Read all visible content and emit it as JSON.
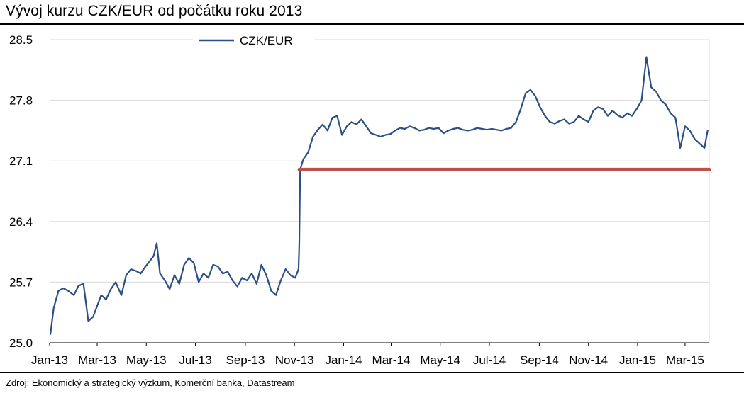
{
  "title": "Vývoj kurzu CZK/EUR od počátku roku 2013",
  "source": "Zdroj: Ekonomický a strategický výzkum, Komerční banka, Datastream",
  "colors": {
    "series": "#2b4f85",
    "floor": "#c0504d",
    "grid": "#d9d9d9",
    "rule": "#000000"
  },
  "chart_data": {
    "type": "line",
    "title": "Vývoj kurzu CZK/EUR od počátku roku 2013",
    "xlabel": "",
    "ylabel": "",
    "ylim": [
      25.0,
      28.5
    ],
    "yticks": [
      "25.0",
      "25.7",
      "26.4",
      "27.1",
      "27.8",
      "28.5"
    ],
    "xlim": [
      "2013-01-01",
      "2015-03-31"
    ],
    "xticks": [
      {
        "date": "2013-01-01",
        "label": "Jan-13"
      },
      {
        "date": "2013-03-01",
        "label": "Mar-13"
      },
      {
        "date": "2013-05-01",
        "label": "May-13"
      },
      {
        "date": "2013-07-01",
        "label": "Jul-13"
      },
      {
        "date": "2013-09-01",
        "label": "Sep-13"
      },
      {
        "date": "2013-11-01",
        "label": "Nov-13"
      },
      {
        "date": "2014-01-01",
        "label": "Jan-14"
      },
      {
        "date": "2014-03-01",
        "label": "Mar-14"
      },
      {
        "date": "2014-05-01",
        "label": "May-14"
      },
      {
        "date": "2014-07-01",
        "label": "Jul-14"
      },
      {
        "date": "2014-09-01",
        "label": "Sep-14"
      },
      {
        "date": "2014-11-01",
        "label": "Nov-14"
      },
      {
        "date": "2015-01-01",
        "label": "Jan-15"
      },
      {
        "date": "2015-03-01",
        "label": "Mar-15"
      }
    ],
    "grid": true,
    "legend": "top-center",
    "series": [
      {
        "name": "CZK/EUR",
        "x": [
          "2013-01-02",
          "2013-01-06",
          "2013-01-12",
          "2013-01-18",
          "2013-01-24",
          "2013-01-31",
          "2013-02-06",
          "2013-02-12",
          "2013-02-18",
          "2013-02-24",
          "2013-03-02",
          "2013-03-06",
          "2013-03-12",
          "2013-03-18",
          "2013-03-24",
          "2013-03-31",
          "2013-04-06",
          "2013-04-12",
          "2013-04-18",
          "2013-04-24",
          "2013-04-30",
          "2013-05-06",
          "2013-05-10",
          "2013-05-14",
          "2013-05-18",
          "2013-05-24",
          "2013-05-30",
          "2013-06-05",
          "2013-06-11",
          "2013-06-17",
          "2013-06-23",
          "2013-06-29",
          "2013-07-05",
          "2013-07-11",
          "2013-07-17",
          "2013-07-23",
          "2013-07-29",
          "2013-08-04",
          "2013-08-10",
          "2013-08-16",
          "2013-08-22",
          "2013-08-28",
          "2013-09-03",
          "2013-09-09",
          "2013-09-15",
          "2013-09-21",
          "2013-09-27",
          "2013-10-03",
          "2013-10-09",
          "2013-10-15",
          "2013-10-21",
          "2013-10-27",
          "2013-11-02",
          "2013-11-06",
          "2013-11-07",
          "2013-11-08",
          "2013-11-12",
          "2013-11-18",
          "2013-11-24",
          "2013-11-30",
          "2013-12-06",
          "2013-12-12",
          "2013-12-18",
          "2013-12-24",
          "2013-12-30",
          "2014-01-05",
          "2014-01-11",
          "2014-01-17",
          "2014-01-23",
          "2014-01-29",
          "2014-02-04",
          "2014-02-10",
          "2014-02-16",
          "2014-02-22",
          "2014-02-28",
          "2014-03-06",
          "2014-03-12",
          "2014-03-18",
          "2014-03-24",
          "2014-03-30",
          "2014-04-05",
          "2014-04-11",
          "2014-04-17",
          "2014-04-23",
          "2014-04-29",
          "2014-05-05",
          "2014-05-11",
          "2014-05-17",
          "2014-05-23",
          "2014-05-29",
          "2014-06-04",
          "2014-06-10",
          "2014-06-16",
          "2014-06-22",
          "2014-06-28",
          "2014-07-04",
          "2014-07-10",
          "2014-07-16",
          "2014-07-22",
          "2014-07-28",
          "2014-08-03",
          "2014-08-09",
          "2014-08-15",
          "2014-08-21",
          "2014-08-27",
          "2014-09-02",
          "2014-09-08",
          "2014-09-14",
          "2014-09-20",
          "2014-09-26",
          "2014-10-02",
          "2014-10-08",
          "2014-10-14",
          "2014-10-20",
          "2014-10-26",
          "2014-11-01",
          "2014-11-07",
          "2014-11-13",
          "2014-11-19",
          "2014-11-25",
          "2014-12-01",
          "2014-12-07",
          "2014-12-13",
          "2014-12-19",
          "2014-12-25",
          "2014-12-31",
          "2015-01-06",
          "2015-01-12",
          "2015-01-18",
          "2015-01-24",
          "2015-01-30",
          "2015-02-05",
          "2015-02-11",
          "2015-02-17",
          "2015-02-23",
          "2015-03-01",
          "2015-03-07",
          "2015-03-13",
          "2015-03-19",
          "2015-03-25",
          "2015-03-29"
        ],
        "values": [
          25.1,
          25.4,
          25.6,
          25.63,
          25.6,
          25.55,
          25.66,
          25.68,
          25.25,
          25.3,
          25.45,
          25.55,
          25.5,
          25.62,
          25.7,
          25.55,
          25.78,
          25.85,
          25.83,
          25.8,
          25.88,
          25.95,
          26.0,
          26.15,
          25.8,
          25.72,
          25.62,
          25.78,
          25.68,
          25.9,
          25.98,
          25.92,
          25.7,
          25.8,
          25.75,
          25.9,
          25.88,
          25.8,
          25.82,
          25.72,
          25.65,
          25.75,
          25.72,
          25.8,
          25.68,
          25.9,
          25.78,
          25.6,
          25.55,
          25.72,
          25.85,
          25.78,
          25.75,
          25.85,
          26.15,
          27.0,
          27.12,
          27.2,
          27.38,
          27.46,
          27.52,
          27.45,
          27.6,
          27.62,
          27.4,
          27.5,
          27.55,
          27.52,
          27.58,
          27.5,
          27.42,
          27.4,
          27.38,
          27.4,
          27.41,
          27.45,
          27.48,
          27.47,
          27.5,
          27.48,
          27.45,
          27.46,
          27.48,
          27.47,
          27.48,
          27.42,
          27.45,
          27.47,
          27.48,
          27.46,
          27.45,
          27.46,
          27.48,
          27.47,
          27.46,
          27.47,
          27.46,
          27.45,
          27.47,
          27.48,
          27.55,
          27.7,
          27.88,
          27.92,
          27.85,
          27.72,
          27.62,
          27.55,
          27.53,
          27.56,
          27.58,
          27.53,
          27.55,
          27.62,
          27.58,
          27.55,
          27.68,
          27.72,
          27.7,
          27.62,
          27.68,
          27.63,
          27.6,
          27.65,
          27.62,
          27.7,
          27.8,
          28.3,
          27.95,
          27.9,
          27.8,
          27.75,
          27.65,
          27.6,
          27.25,
          27.5,
          27.45,
          27.35,
          27.3,
          27.25,
          27.45
        ]
      },
      {
        "name": "",
        "x": [
          "2013-11-07",
          "2015-03-31"
        ],
        "values": [
          27.0,
          27.0
        ]
      }
    ]
  }
}
